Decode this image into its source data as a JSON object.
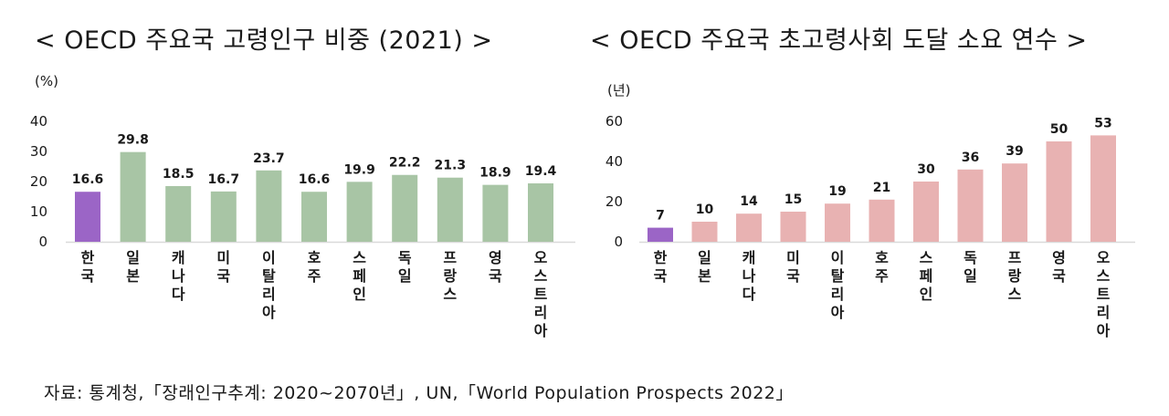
{
  "titles": {
    "left": "< OECD 주요국 고령인구 비중 (2021) >",
    "right": "< OECD 주요국 초고령사회 도달 소요 연수 >"
  },
  "source": "자료: 통계청,「장래인구추계: 2020~2070년」, UN,「World Population Prospects 2022」",
  "colors": {
    "highlight": "#9b65c6",
    "left_bar": "#a8c5a5",
    "right_bar": "#e8b2b2",
    "axis": "#d9d9d9"
  },
  "chart_data": [
    {
      "type": "bar",
      "title": "< OECD 주요국 고령인구 비중 (2021) >",
      "unit": "(%)",
      "ylim": [
        0,
        40
      ],
      "yticks": [
        "0",
        "10",
        "20",
        "30",
        "40"
      ],
      "categories": [
        "한국",
        "일본",
        "캐나다",
        "미국",
        "이탈리아",
        "호주",
        "스페인",
        "독일",
        "프랑스",
        "영국",
        "오스트리아"
      ],
      "values": [
        16.6,
        29.8,
        18.5,
        16.7,
        23.7,
        16.6,
        19.9,
        22.2,
        21.3,
        18.9,
        19.4
      ],
      "value_labels": [
        "16.6",
        "29.8",
        "18.5",
        "16.7",
        "23.7",
        "16.6",
        "19.9",
        "22.2",
        "21.3",
        "18.9",
        "19.4"
      ],
      "highlight_index": 0
    },
    {
      "type": "bar",
      "title": "< OECD 주요국 초고령사회 도달 소요 연수 >",
      "unit": "(년)",
      "ylim": [
        0,
        60
      ],
      "yticks": [
        "0",
        "20",
        "40",
        "60"
      ],
      "categories": [
        "한국",
        "일본",
        "캐나다",
        "미국",
        "이탈리아",
        "호주",
        "스페인",
        "독일",
        "프랑스",
        "영국",
        "오스트리아"
      ],
      "values": [
        7,
        10,
        14,
        15,
        19,
        21,
        30,
        36,
        39,
        50,
        53
      ],
      "value_labels": [
        "7",
        "10",
        "14",
        "15",
        "19",
        "21",
        "30",
        "36",
        "39",
        "50",
        "53"
      ],
      "highlight_index": 0
    }
  ]
}
